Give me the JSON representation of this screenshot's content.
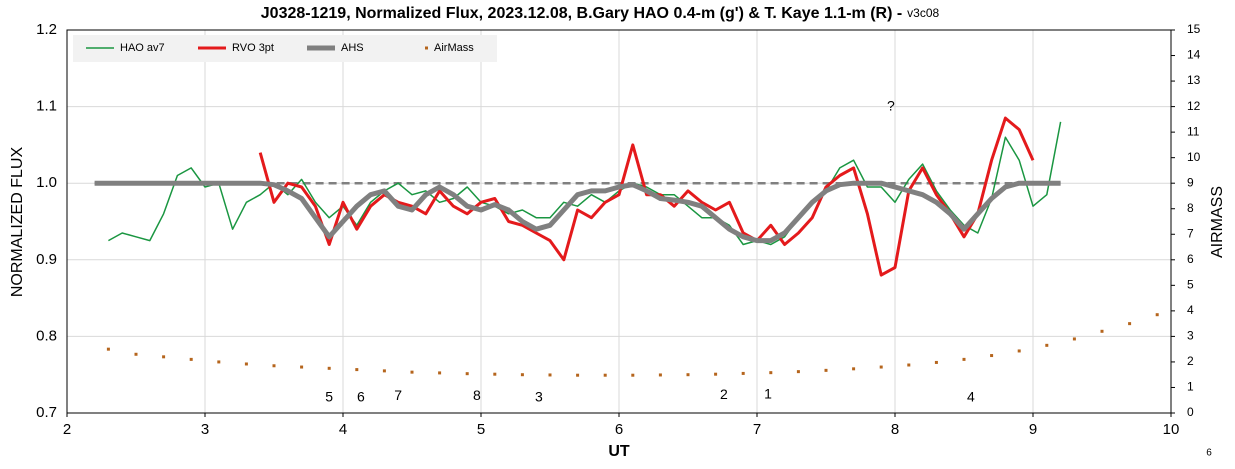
{
  "chart_data": {
    "type": "line",
    "title": "J0328-1219, Normalized Flux, 2023.12.08, B.Gary HAO 0.4-m (g') & T. Kaye 1.1-m (R) -",
    "version": "v3c08",
    "page_number": "6",
    "x_label": "UT",
    "y_label": "NORMALIZED FLUX",
    "y2_label": "AIRMASS",
    "xlim": [
      2,
      10
    ],
    "xticks": [
      2,
      3,
      4,
      5,
      6,
      7,
      8,
      9,
      10
    ],
    "ylim": [
      0.7,
      1.2
    ],
    "yticks": [
      0.7,
      0.8,
      0.9,
      {
        "value": 1.0,
        "label": "1.0"
      },
      1.1,
      1.2
    ],
    "y2lim": [
      0,
      15
    ],
    "y2ticks": [
      0,
      1,
      2,
      3,
      4,
      5,
      6,
      7,
      8,
      9,
      10,
      11,
      12,
      13,
      14,
      15
    ],
    "grid": true,
    "legend": "upper left",
    "reference_line": {
      "value": 1.0,
      "color": "#808080",
      "style": "dashed"
    },
    "series": [
      {
        "name": "HAO av7",
        "color": "#1a9641",
        "type": "line",
        "width": 1.5,
        "x": [
          2.3,
          2.4,
          2.5,
          2.6,
          2.7,
          2.8,
          2.9,
          3.0,
          3.1,
          3.2,
          3.3,
          3.4,
          3.5,
          3.6,
          3.7,
          3.8,
          3.9,
          4.0,
          4.1,
          4.2,
          4.3,
          4.4,
          4.5,
          4.6,
          4.7,
          4.8,
          4.9,
          5.0,
          5.1,
          5.2,
          5.3,
          5.4,
          5.5,
          5.6,
          5.7,
          5.8,
          5.9,
          6.0,
          6.1,
          6.2,
          6.3,
          6.4,
          6.5,
          6.6,
          6.7,
          6.8,
          6.9,
          7.0,
          7.1,
          7.2,
          7.3,
          7.4,
          7.5,
          7.6,
          7.7,
          7.8,
          7.9,
          8.0,
          8.1,
          8.2,
          8.3,
          8.4,
          8.5,
          8.6,
          8.7,
          8.8,
          8.9,
          9.0,
          9.1,
          9.2
        ],
        "values": [
          0.925,
          0.935,
          0.93,
          0.925,
          0.96,
          1.01,
          1.02,
          0.995,
          1.0,
          0.94,
          0.975,
          0.985,
          1.0,
          0.985,
          1.005,
          0.975,
          0.955,
          0.97,
          0.945,
          0.975,
          0.99,
          1.0,
          0.985,
          0.99,
          0.975,
          0.98,
          0.995,
          0.975,
          0.97,
          0.96,
          0.965,
          0.955,
          0.955,
          0.975,
          0.97,
          0.985,
          0.975,
          0.99,
          1.0,
          0.995,
          0.985,
          0.985,
          0.97,
          0.955,
          0.955,
          0.945,
          0.92,
          0.925,
          0.92,
          0.93,
          0.955,
          0.975,
          0.99,
          1.02,
          1.03,
          0.995,
          0.995,
          0.975,
          1.005,
          1.025,
          0.99,
          0.965,
          0.945,
          0.935,
          0.98,
          1.06,
          1.03,
          0.97,
          0.985,
          1.08
        ]
      },
      {
        "name": "RVO 3pt",
        "color": "#e41a1c",
        "type": "line",
        "width": 3,
        "x": [
          3.4,
          3.5,
          3.6,
          3.7,
          3.8,
          3.9,
          4.0,
          4.1,
          4.2,
          4.3,
          4.4,
          4.5,
          4.6,
          4.7,
          4.8,
          4.9,
          5.0,
          5.1,
          5.2,
          5.3,
          5.4,
          5.5,
          5.6,
          5.7,
          5.8,
          5.9,
          6.0,
          6.1,
          6.2,
          6.3,
          6.4,
          6.5,
          6.6,
          6.7,
          6.8,
          6.9,
          7.0,
          7.1,
          7.2,
          7.3,
          7.4,
          7.5,
          7.6,
          7.7,
          7.8,
          7.9,
          8.0,
          8.1,
          8.2,
          8.3,
          8.4,
          8.5,
          8.6,
          8.7,
          8.8,
          8.9,
          9.0
        ],
        "values": [
          1.04,
          0.975,
          1.0,
          0.995,
          0.97,
          0.92,
          0.975,
          0.94,
          0.97,
          0.985,
          0.975,
          0.97,
          0.96,
          0.99,
          0.97,
          0.96,
          0.975,
          0.98,
          0.95,
          0.945,
          0.935,
          0.925,
          0.9,
          0.965,
          0.955,
          0.975,
          0.985,
          1.05,
          0.985,
          0.985,
          0.97,
          0.99,
          0.975,
          0.965,
          0.975,
          0.935,
          0.925,
          0.945,
          0.92,
          0.935,
          0.955,
          0.995,
          1.01,
          1.02,
          0.96,
          0.88,
          0.89,
          0.99,
          1.02,
          0.985,
          0.96,
          0.93,
          0.96,
          1.03,
          1.085,
          1.07,
          1.03
        ]
      },
      {
        "name": "AHS",
        "color": "#808080",
        "type": "line",
        "width": 5,
        "x": [
          2.2,
          2.3,
          2.4,
          2.5,
          2.6,
          2.7,
          2.8,
          2.9,
          3.0,
          3.1,
          3.2,
          3.3,
          3.4,
          3.5,
          3.6,
          3.7,
          3.8,
          3.9,
          4.0,
          4.1,
          4.2,
          4.3,
          4.4,
          4.5,
          4.6,
          4.7,
          4.8,
          4.9,
          5.0,
          5.1,
          5.2,
          5.3,
          5.4,
          5.5,
          5.6,
          5.7,
          5.8,
          5.9,
          6.0,
          6.1,
          6.2,
          6.3,
          6.4,
          6.5,
          6.6,
          6.7,
          6.8,
          6.9,
          7.0,
          7.1,
          7.2,
          7.3,
          7.4,
          7.5,
          7.6,
          7.7,
          7.8,
          7.9,
          8.0,
          8.1,
          8.2,
          8.3,
          8.4,
          8.5,
          8.6,
          8.7,
          8.8,
          8.9,
          9.0,
          9.1,
          9.2
        ],
        "values": [
          1.0,
          1.0,
          1.0,
          1.0,
          1.0,
          1.0,
          1.0,
          1.0,
          1.0,
          1.0,
          1.0,
          1.0,
          1.0,
          0.998,
          0.99,
          0.98,
          0.955,
          0.93,
          0.95,
          0.97,
          0.985,
          0.99,
          0.97,
          0.965,
          0.985,
          0.995,
          0.985,
          0.97,
          0.965,
          0.972,
          0.965,
          0.95,
          0.94,
          0.945,
          0.965,
          0.985,
          0.99,
          0.99,
          0.995,
          0.998,
          0.99,
          0.98,
          0.978,
          0.975,
          0.97,
          0.955,
          0.94,
          0.93,
          0.925,
          0.925,
          0.935,
          0.955,
          0.975,
          0.99,
          0.998,
          1.0,
          1.0,
          1.0,
          0.995,
          0.99,
          0.985,
          0.975,
          0.96,
          0.94,
          0.96,
          0.98,
          0.995,
          1.0,
          1.0,
          1.0,
          1.0
        ]
      },
      {
        "name": "AirMass",
        "color": "#b5651d",
        "type": "scatter",
        "axis": "y2",
        "x": [
          2.3,
          2.5,
          2.7,
          2.9,
          3.1,
          3.3,
          3.5,
          3.7,
          3.9,
          4.1,
          4.3,
          4.5,
          4.7,
          4.9,
          5.1,
          5.3,
          5.5,
          5.7,
          5.9,
          6.1,
          6.3,
          6.5,
          6.7,
          6.9,
          7.1,
          7.3,
          7.5,
          7.7,
          7.9,
          8.1,
          8.3,
          8.5,
          8.7,
          8.9,
          9.1,
          9.3,
          9.5,
          9.7,
          9.9
        ],
        "values": [
          2.5,
          2.3,
          2.2,
          2.1,
          2.0,
          1.92,
          1.85,
          1.8,
          1.75,
          1.7,
          1.65,
          1.6,
          1.57,
          1.54,
          1.52,
          1.5,
          1.49,
          1.48,
          1.48,
          1.48,
          1.49,
          1.5,
          1.52,
          1.55,
          1.58,
          1.62,
          1.67,
          1.73,
          1.8,
          1.88,
          1.98,
          2.1,
          2.25,
          2.43,
          2.65,
          2.9,
          3.2,
          3.5,
          3.85
        ]
      }
    ],
    "annotations": [
      {
        "text": "5",
        "x": 3.9,
        "y": 0.72
      },
      {
        "text": "6",
        "x": 4.13,
        "y": 0.72
      },
      {
        "text": "7",
        "x": 4.4,
        "y": 0.722
      },
      {
        "text": "8",
        "x": 4.97,
        "y": 0.722
      },
      {
        "text": "3",
        "x": 5.42,
        "y": 0.72
      },
      {
        "text": "2",
        "x": 6.76,
        "y": 0.723
      },
      {
        "text": "1",
        "x": 7.08,
        "y": 0.724
      },
      {
        "text": "4",
        "x": 8.55,
        "y": 0.72
      },
      {
        "text": "?",
        "x": 7.97,
        "y": 1.1
      }
    ]
  }
}
